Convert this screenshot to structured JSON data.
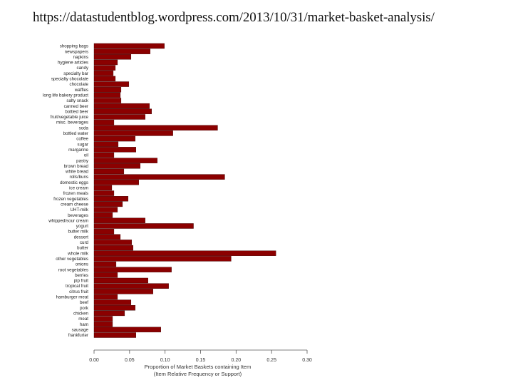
{
  "caption": {
    "url": "https://datastudentblog.wordpress.com/2013/10/31/market-basket-analysis/"
  },
  "chart_data": {
    "type": "bar",
    "orientation": "horizontal",
    "categories": [
      "shopping bags",
      "newspapers",
      "napkins",
      "hygiene articles",
      "candy",
      "specialty bar",
      "specialty chocolate",
      "chocolate",
      "waffles",
      "long life bakery product",
      "salty snack",
      "canned beer",
      "bottled beer",
      "fruit/vegetable juice",
      "misc. beverages",
      "soda",
      "bottled water",
      "coffee",
      "sugar",
      "margarine",
      "oil",
      "pastry",
      "brown bread",
      "white bread",
      "rolls/buns",
      "domestic eggs",
      "ice cream",
      "frozen meals",
      "frozen vegetables",
      "cream cheese",
      "UHT-milk",
      "beverages",
      "whipped/sour cream",
      "yogurt",
      "butter milk",
      "dessert",
      "curd",
      "butter",
      "whole milk",
      "other vegetables",
      "onions",
      "root vegetables",
      "berries",
      "pip fruit",
      "tropical fruit",
      "citrus fruit",
      "hamburger meat",
      "beef",
      "pork",
      "chicken",
      "meat",
      "ham",
      "sausage",
      "frankfurter"
    ],
    "values": [
      0.099,
      0.079,
      0.052,
      0.033,
      0.03,
      0.027,
      0.03,
      0.049,
      0.038,
      0.037,
      0.038,
      0.078,
      0.081,
      0.072,
      0.028,
      0.174,
      0.111,
      0.058,
      0.034,
      0.059,
      0.028,
      0.089,
      0.065,
      0.042,
      0.184,
      0.063,
      0.025,
      0.028,
      0.048,
      0.04,
      0.033,
      0.026,
      0.072,
      0.14,
      0.028,
      0.037,
      0.053,
      0.055,
      0.256,
      0.193,
      0.031,
      0.109,
      0.033,
      0.076,
      0.105,
      0.083,
      0.033,
      0.052,
      0.058,
      0.043,
      0.026,
      0.026,
      0.094,
      0.059
    ],
    "xlim": [
      0,
      0.3
    ],
    "xticks": [
      0.0,
      0.05,
      0.1,
      0.15,
      0.2,
      0.25,
      0.3
    ],
    "xtick_labels": [
      "0.00",
      "0.05",
      "0.10",
      "0.15",
      "0.20",
      "0.25",
      "0.30"
    ],
    "xlabel_line1": "Proportion of Market Baskets containing Item",
    "xlabel_line2": "(Item Relative Frequency or Support)",
    "bar_color": "#8b0000",
    "bar_edge_color": "#3a0000"
  }
}
